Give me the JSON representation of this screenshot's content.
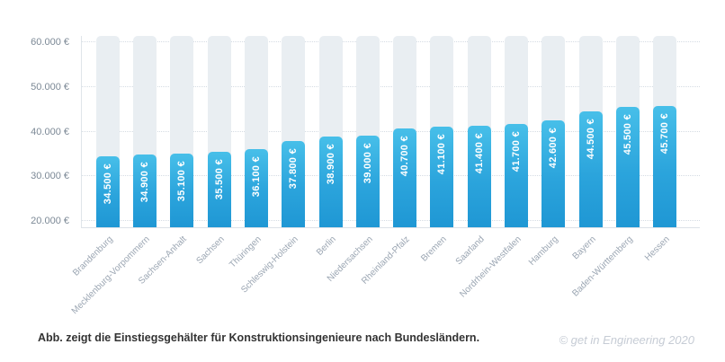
{
  "chart_data": {
    "type": "bar",
    "title": "",
    "xlabel": "",
    "ylabel": "",
    "categories": [
      "Brandenburg",
      "Mecklenburg-Vorpommern",
      "Sachsen-Anhalt",
      "Sachsen",
      "Thüringen",
      "Schleswig-Holstein",
      "Berlin",
      "Niedersachsen",
      "Rheinland-Pfalz",
      "Bremen",
      "Saarland",
      "Nordrhein-Westfalen",
      "Hamburg",
      "Bayern",
      "Baden-Württemberg",
      "Hessen"
    ],
    "values": [
      34500,
      34900,
      35100,
      35500,
      36100,
      37800,
      38900,
      39000,
      40700,
      41100,
      41400,
      41700,
      42600,
      44500,
      45500,
      45700
    ],
    "bar_labels": [
      "34.500 €",
      "34.900 €",
      "35.100 €",
      "35.500 €",
      "36.100 €",
      "37.800 €",
      "38.900 €",
      "39.000 €",
      "40.700 €",
      "41.100 €",
      "41.400 €",
      "41.700 €",
      "42.600 €",
      "44.500 €",
      "45.500 €",
      "45.700 €"
    ],
    "yticks": [
      {
        "value": 20000,
        "label": "20.000 €"
      },
      {
        "value": 30000,
        "label": "30.000 €"
      },
      {
        "value": 40000,
        "label": "40.000 €"
      },
      {
        "value": 50000,
        "label": "50.000 €"
      },
      {
        "value": 60000,
        "label": "60.000 €"
      }
    ],
    "ylim": [
      18600,
      61400
    ],
    "grid": "horizontal-dotted",
    "legend": "none",
    "track_background": true
  },
  "caption": "Abb. zeigt die Einstiegsgehälter für Konstruktionsingenieure nach Bundesländern.",
  "copyright": "© get in Engineering 2020",
  "colors": {
    "bar_top": "#47BFE9",
    "bar_bottom": "#1F97D4",
    "track": "#E9EEF2",
    "gridline": "#D5DCE3",
    "axis": "#DFE5EA",
    "y_label": "#7C8996",
    "x_label": "#9AA5B2",
    "bar_value_text": "#FFFFFF",
    "caption_text": "#333333",
    "copyright_text": "#C6CCD5"
  }
}
